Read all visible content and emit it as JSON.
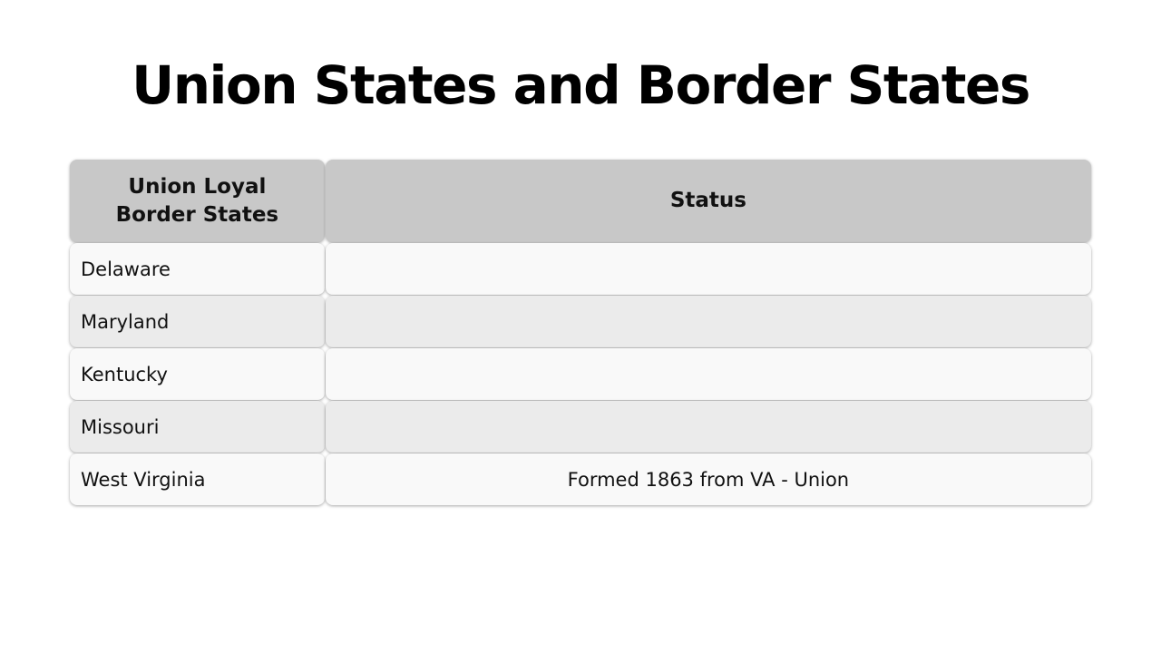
{
  "title": "Union States and Border States",
  "table": {
    "header": [
      "Union Loyal Border States",
      "Status"
    ],
    "rows": [
      [
        "Delaware"
      ],
      [
        "Maryland"
      ],
      [
        "Kentucky"
      ],
      [
        "Missouri"
      ],
      [
        "West Virginia",
        "Formed 1863 from VA - Union"
      ]
    ]
  }
}
